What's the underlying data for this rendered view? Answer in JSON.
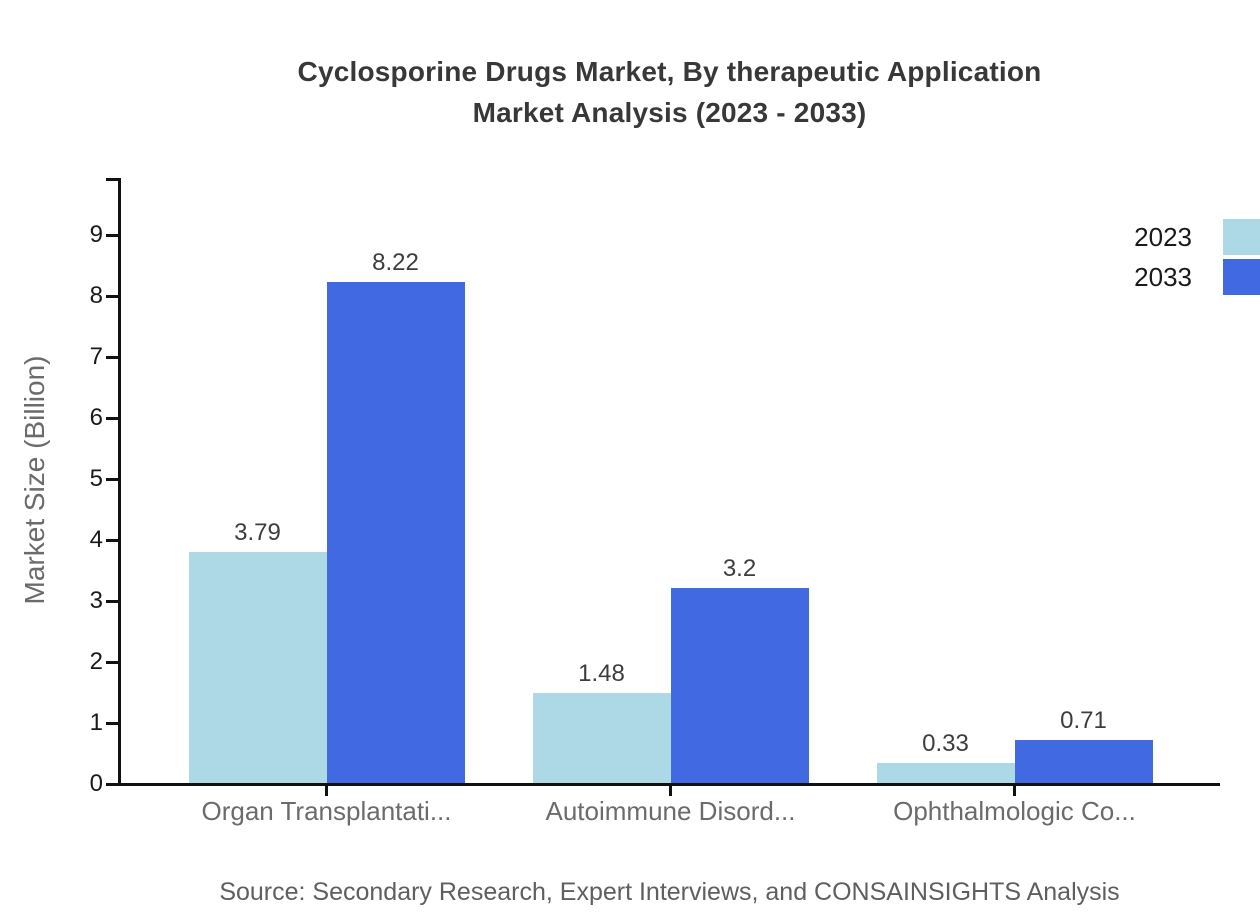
{
  "title": {
    "line1": "Cyclosporine Drugs Market, By therapeutic Application",
    "line2": "Market Analysis (2023 - 2033)"
  },
  "source": "Source: Secondary Research, Expert Interviews, and CONSAINSIGHTS Analysis",
  "legend": [
    {
      "label": "2023",
      "color": "#ADD8E6"
    },
    {
      "label": "2033",
      "color": "#4169E1"
    }
  ],
  "colors": {
    "series_2023": "#ADD8E6",
    "series_2033": "#4169E1",
    "axis": "#111111",
    "title_text": "#383838",
    "muted_text": "#6b6b6b"
  },
  "chart_data": {
    "type": "bar",
    "title": "Cyclosporine Drugs Market, By therapeutic Application Market Analysis (2023 - 2033)",
    "categories": [
      "Organ Transplantati...",
      "Autoimmune Disord...",
      "Ophthalmologic Co..."
    ],
    "series": [
      {
        "name": "2023",
        "color": "#ADD8E6",
        "values": [
          3.79,
          1.48,
          0.33
        ]
      },
      {
        "name": "2033",
        "color": "#4169E1",
        "values": [
          8.22,
          3.2,
          0.71
        ]
      }
    ],
    "xlabel": "",
    "ylabel": "Market Size (Billion)",
    "ylim": [
      0,
      9.9
    ],
    "yticks": [
      0,
      1,
      2,
      3,
      4,
      5,
      6,
      7,
      8,
      9
    ],
    "grid": false,
    "legend_position": "top-right",
    "value_labels_shown": true
  }
}
